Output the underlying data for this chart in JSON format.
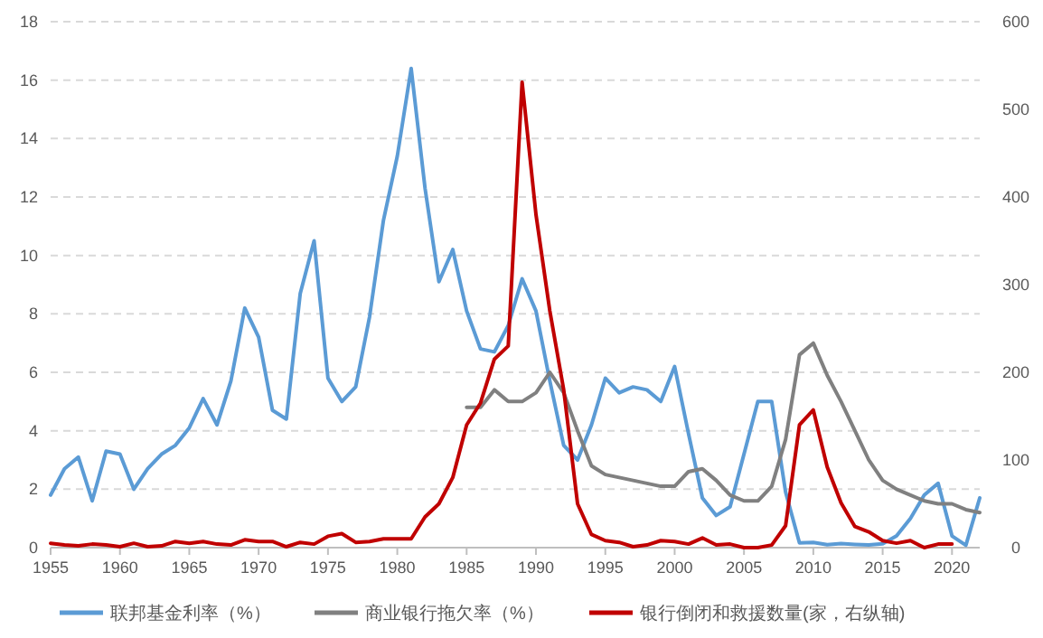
{
  "chart_data": {
    "type": "line",
    "xlim": [
      1955,
      2022
    ],
    "xticks": [
      1955,
      1960,
      1965,
      1970,
      1975,
      1980,
      1985,
      1990,
      1995,
      2000,
      2005,
      2010,
      2015,
      2020
    ],
    "ylim": [
      0,
      18
    ],
    "yticks": [
      0,
      2,
      4,
      6,
      8,
      10,
      12,
      14,
      16,
      18
    ],
    "y2lim": [
      0,
      600
    ],
    "y2ticks": [
      0,
      100,
      200,
      300,
      400,
      500,
      600
    ],
    "grid": "y",
    "legend": "bottom",
    "line_style": "solid",
    "marker": "none",
    "series": [
      {
        "name": "联邦基金利率（%）",
        "color": "#5b9bd5",
        "x": [
          1955,
          1956,
          1957,
          1958,
          1959,
          1960,
          1961,
          1962,
          1963,
          1964,
          1965,
          1966,
          1967,
          1968,
          1969,
          1970,
          1971,
          1972,
          1973,
          1974,
          1975,
          1976,
          1977,
          1978,
          1979,
          1980,
          1981,
          1982,
          1983,
          1984,
          1985,
          1986,
          1987,
          1988,
          1989,
          1990,
          1991,
          1992,
          1993,
          1994,
          1995,
          1996,
          1997,
          1998,
          1999,
          2000,
          2001,
          2002,
          2003,
          2004,
          2005,
          2006,
          2007,
          2008,
          2009,
          2010,
          2011,
          2012,
          2013,
          2014,
          2015,
          2016,
          2017,
          2018,
          2019,
          2020,
          2021,
          2022
        ],
        "values": [
          1.8,
          2.7,
          3.1,
          1.6,
          3.3,
          3.2,
          2.0,
          2.7,
          3.2,
          3.5,
          4.1,
          5.1,
          4.2,
          5.7,
          8.2,
          7.2,
          4.7,
          4.4,
          8.7,
          10.5,
          5.8,
          5.0,
          5.5,
          7.9,
          11.2,
          13.4,
          16.4,
          12.3,
          9.1,
          10.2,
          8.1,
          6.8,
          6.7,
          7.6,
          9.2,
          8.1,
          5.7,
          3.5,
          3.0,
          4.2,
          5.8,
          5.3,
          5.5,
          5.4,
          5.0,
          6.2,
          3.9,
          1.7,
          1.1,
          1.4,
          3.2,
          5.0,
          5.0,
          1.9,
          0.16,
          0.18,
          0.1,
          0.14,
          0.11,
          0.09,
          0.13,
          0.4,
          1.0,
          1.8,
          2.2,
          0.4,
          0.08,
          1.7
        ]
      },
      {
        "name": "商业银行拖欠率（%）",
        "color": "#808080",
        "x": [
          1985,
          1986,
          1987,
          1988,
          1989,
          1990,
          1991,
          1992,
          1993,
          1994,
          1995,
          1996,
          1997,
          1998,
          1999,
          2000,
          2001,
          2002,
          2003,
          2004,
          2005,
          2006,
          2007,
          2008,
          2009,
          2010,
          2011,
          2012,
          2013,
          2014,
          2015,
          2016,
          2017,
          2018,
          2019,
          2020,
          2021,
          2022
        ],
        "values": [
          4.8,
          4.8,
          5.4,
          5.0,
          5.0,
          5.3,
          6.0,
          5.3,
          4.0,
          2.8,
          2.5,
          2.4,
          2.3,
          2.2,
          2.1,
          2.1,
          2.6,
          2.7,
          2.3,
          1.8,
          1.6,
          1.6,
          2.1,
          3.7,
          6.6,
          7.0,
          5.9,
          5.0,
          4.0,
          3.0,
          2.3,
          2.0,
          1.8,
          1.6,
          1.5,
          1.5,
          1.3,
          1.2
        ]
      },
      {
        "name": "银行倒闭和救援数量(家，右纵轴)",
        "color": "#c00000",
        "axis": "y2",
        "x": [
          1955,
          1956,
          1957,
          1958,
          1959,
          1960,
          1961,
          1962,
          1963,
          1964,
          1965,
          1966,
          1967,
          1968,
          1969,
          1970,
          1971,
          1972,
          1973,
          1974,
          1975,
          1976,
          1977,
          1978,
          1979,
          1980,
          1981,
          1982,
          1983,
          1984,
          1985,
          1986,
          1987,
          1988,
          1989,
          1990,
          1991,
          1992,
          1993,
          1994,
          1995,
          1996,
          1997,
          1998,
          1999,
          2000,
          2001,
          2002,
          2003,
          2004,
          2005,
          2006,
          2007,
          2008,
          2009,
          2010,
          2011,
          2012,
          2013,
          2014,
          2015,
          2016,
          2017,
          2018,
          2019,
          2020
        ],
        "values": [
          5,
          3,
          2,
          4,
          3,
          1,
          5,
          1,
          2,
          7,
          5,
          7,
          4,
          3,
          9,
          7,
          7,
          1,
          6,
          4,
          13,
          16,
          6,
          7,
          10,
          10,
          10,
          35,
          50,
          80,
          140,
          165,
          215,
          230,
          531,
          380,
          270,
          180,
          50,
          15,
          8,
          6,
          1,
          3,
          8,
          7,
          4,
          11,
          3,
          4,
          0,
          0,
          3,
          25,
          140,
          157,
          92,
          51,
          24,
          18,
          8,
          5,
          8,
          0,
          4,
          4
        ]
      }
    ]
  }
}
